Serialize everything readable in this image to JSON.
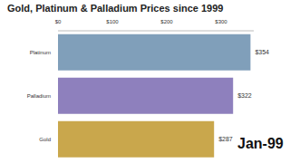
{
  "chart_data": {
    "type": "bar",
    "title": "Gold, Platinum & Palladium Prices since 1999",
    "orientation": "horizontal",
    "categories": [
      "Platinum",
      "Palladium",
      "Gold"
    ],
    "values": [
      354,
      322,
      287
    ],
    "value_labels": [
      "$354",
      "$322",
      "$287"
    ],
    "data_labels": true,
    "colors": [
      "#809fba",
      "#8e80bd",
      "#c9a74c"
    ],
    "xlim": [
      0,
      360
    ],
    "xticks": [
      {
        "value": 0,
        "label": "$0"
      },
      {
        "value": 100,
        "label": "$100"
      },
      {
        "value": 200,
        "label": "$200"
      },
      {
        "value": 300,
        "label": "$300"
      }
    ],
    "grid": false,
    "annotation": "Jan-99"
  }
}
